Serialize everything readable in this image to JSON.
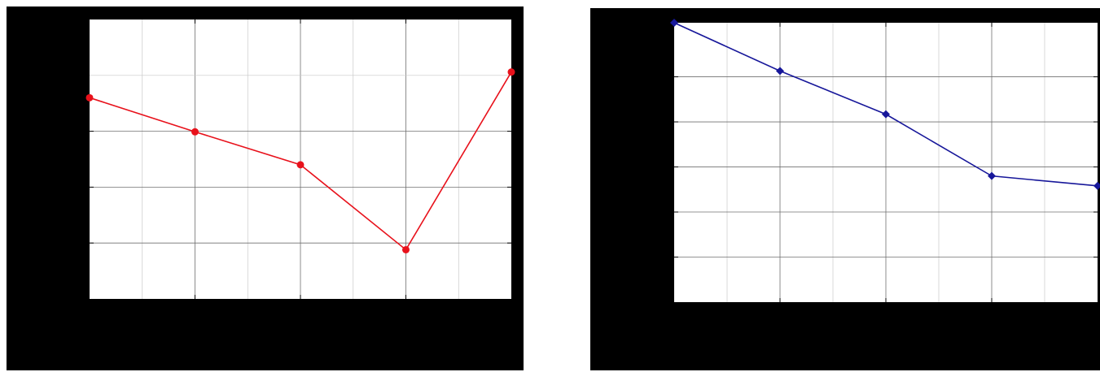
{
  "chart_data": [
    {
      "type": "line",
      "title": "",
      "xlabel": "",
      "ylabel": "",
      "grid": true,
      "x": [
        0,
        2,
        4,
        6,
        8
      ],
      "xlim": [
        0,
        8
      ],
      "ylim": [
        0,
        5
      ],
      "series": [
        {
          "values": [
            3.6,
            2.99,
            2.4,
            0.88,
            4.06
          ],
          "color": "#e8111b",
          "marker": "circle"
        }
      ]
    },
    {
      "type": "line",
      "title": "",
      "xlabel": "",
      "ylabel": "",
      "grid": true,
      "x": [
        0,
        2,
        4,
        6,
        8
      ],
      "xlim": [
        0,
        8
      ],
      "ylim": [
        0,
        6.2
      ],
      "series": [
        {
          "values": [
            6.2,
            5.13,
            4.17,
            2.8,
            2.58
          ],
          "color": "#17179a",
          "marker": "diamond"
        }
      ]
    }
  ]
}
